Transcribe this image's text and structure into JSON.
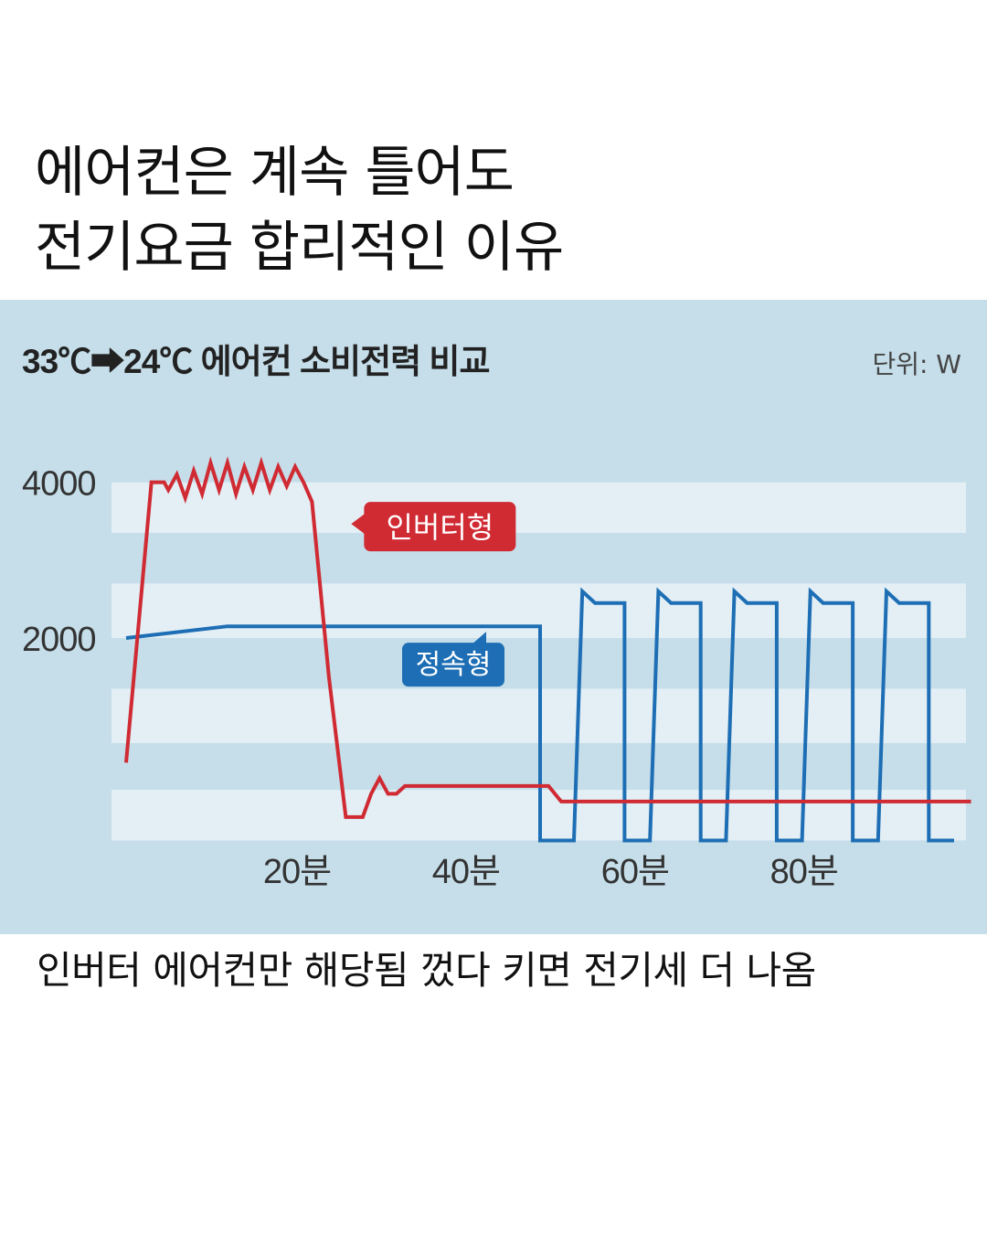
{
  "headline": {
    "line1": "에어컨은 계속 틀어도",
    "line2": "전기요금 합리적인 이유"
  },
  "caption": "인버터 에어컨만 해당됨 껐다 키면 전기세 더 나옴",
  "colors": {
    "background": "#ffffff",
    "panel": "#c5dee9",
    "band": "#e3eff5",
    "inverter": "#d02a33",
    "fixed": "#1d6eb4",
    "text": "#111111",
    "axis_text": "#333333"
  },
  "chart_data": {
    "type": "line",
    "title": "33℃➡24℃ 에어컨 소비전력 비교",
    "unit_label": "단위: W",
    "xlim": [
      0,
      98
    ],
    "ylim": [
      -700,
      4700
    ],
    "y_ticks": [
      {
        "value": 4000,
        "label": "4000"
      },
      {
        "value": 2000,
        "label": "2000"
      }
    ],
    "x_ticks": [
      {
        "value": 20,
        "label": "20분"
      },
      {
        "value": 40,
        "label": "40분"
      },
      {
        "value": 60,
        "label": "60분"
      },
      {
        "value": 80,
        "label": "80분"
      }
    ],
    "bands": [
      [
        3350,
        4000
      ],
      [
        2000,
        2700
      ],
      [
        650,
        1350
      ],
      [
        -600,
        50
      ]
    ],
    "series": [
      {
        "name": "인버터형",
        "color_key": "inverter",
        "label_point": [
          3.5,
          3700
        ],
        "points": [
          [
            0,
            400
          ],
          [
            3,
            4000
          ],
          [
            4.5,
            4000
          ],
          [
            5,
            3900
          ],
          [
            6,
            4100
          ],
          [
            7,
            3800
          ],
          [
            8,
            4150
          ],
          [
            9,
            3850
          ],
          [
            10,
            4250
          ],
          [
            11,
            3900
          ],
          [
            12,
            4250
          ],
          [
            13,
            3850
          ],
          [
            14,
            4200
          ],
          [
            15,
            3900
          ],
          [
            16,
            4250
          ],
          [
            17,
            3900
          ],
          [
            18,
            4200
          ],
          [
            19,
            3950
          ],
          [
            20,
            4200
          ],
          [
            21,
            4000
          ],
          [
            22,
            3750
          ],
          [
            24,
            1500
          ],
          [
            26,
            -300
          ],
          [
            28,
            -300
          ],
          [
            29,
            0
          ],
          [
            30,
            200
          ],
          [
            31,
            0
          ],
          [
            32,
            0
          ],
          [
            33,
            100
          ],
          [
            50,
            100
          ],
          [
            51.5,
            -100
          ],
          [
            100,
            -100
          ]
        ]
      },
      {
        "name": "정속형",
        "color_key": "fixed",
        "label_point": [
          47,
          2080
        ],
        "points": [
          [
            0,
            2000
          ],
          [
            12,
            2150
          ],
          [
            49,
            2150
          ],
          [
            49,
            -600
          ],
          [
            53,
            -600
          ],
          [
            54,
            2600
          ],
          [
            55.5,
            2450
          ],
          [
            59,
            2450
          ],
          [
            59,
            -600
          ],
          [
            62,
            -600
          ],
          [
            63,
            2600
          ],
          [
            64.5,
            2450
          ],
          [
            68,
            2450
          ],
          [
            68,
            -600
          ],
          [
            71,
            -600
          ],
          [
            72,
            2600
          ],
          [
            73.5,
            2450
          ],
          [
            77,
            2450
          ],
          [
            77,
            -600
          ],
          [
            80,
            -600
          ],
          [
            81,
            2600
          ],
          [
            82.5,
            2450
          ],
          [
            86,
            2450
          ],
          [
            86,
            -600
          ],
          [
            89,
            -600
          ],
          [
            90,
            2600
          ],
          [
            91.5,
            2450
          ],
          [
            95,
            2450
          ],
          [
            95,
            -600
          ],
          [
            98,
            -600
          ]
        ]
      }
    ]
  }
}
